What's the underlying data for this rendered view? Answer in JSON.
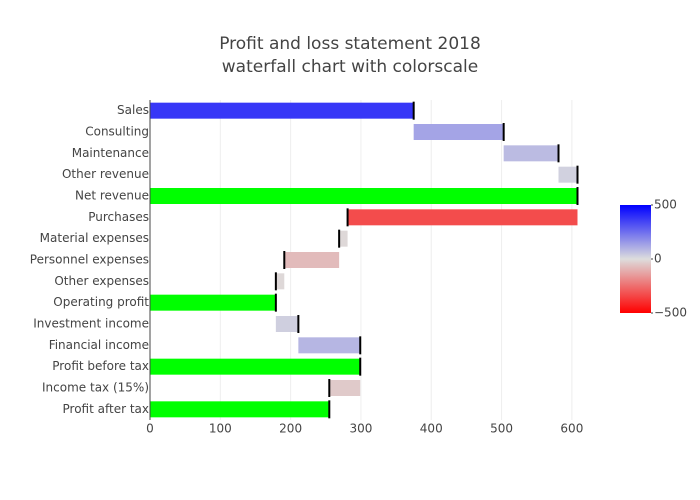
{
  "chart_data": {
    "type": "waterfall",
    "orientation": "h",
    "title": [
      "Profit and loss statement 2018",
      "waterfall chart with colorscale"
    ],
    "categories": [
      "Sales",
      "Consulting",
      "Maintenance",
      "Other revenue",
      "Net revenue",
      "Purchases",
      "Material expenses",
      "Personnel expenses",
      "Other expenses",
      "Operating profit",
      "Investment income",
      "Financial income",
      "Profit before tax",
      "Income tax (15%)",
      "Profit after tax"
    ],
    "measure": [
      "relative",
      "relative",
      "relative",
      "relative",
      "total",
      "relative",
      "relative",
      "relative",
      "relative",
      "total",
      "relative",
      "relative",
      "total",
      "relative",
      "total"
    ],
    "values": [
      375,
      128,
      78,
      27,
      608,
      -327,
      -12,
      -78,
      -12,
      179,
      32,
      88,
      299,
      -44,
      255
    ],
    "total_color": "#00ff00",
    "colorscale": [
      [
        -500,
        "#ff0000"
      ],
      [
        0,
        "#dddddd"
      ],
      [
        500,
        "#0000ff"
      ]
    ],
    "xlim": [
      0,
      640
    ],
    "xticks": [
      0,
      100,
      200,
      300,
      400,
      500,
      600
    ],
    "colorbar_ticks": [
      500,
      0,
      {
        "value": -500,
        "label": "−500"
      }
    ],
    "grid": true
  }
}
